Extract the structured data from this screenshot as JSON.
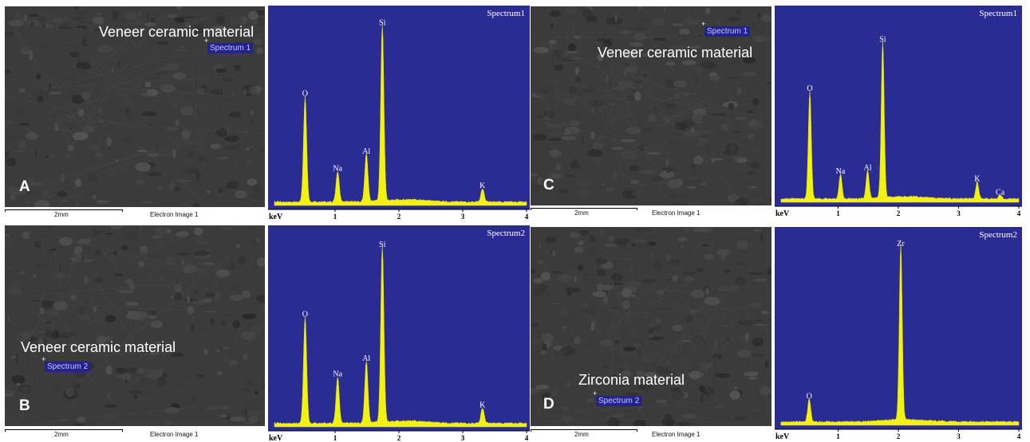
{
  "colors": {
    "plot_bg": "#2b2b94",
    "peak_fill": "#f2f20f",
    "spectrum_title": "#ffffff",
    "sem_base": "#3b3b3b"
  },
  "panels": [
    {
      "letter": "A",
      "material_label": "Veneer ceramic material",
      "spectrum_tag": "Spectrum 1",
      "scale_label": "2mm",
      "image_label": "Electron Image 1"
    },
    {
      "letter": "B",
      "material_label": "Veneer ceramic material",
      "spectrum_tag": "Spectrum 2",
      "scale_label": "2mm",
      "image_label": "Electron Image 1"
    },
    {
      "letter": "C",
      "material_label": "Veneer ceramic material",
      "spectrum_tag": "Spectrum 1",
      "scale_label": "2mm",
      "image_label": "Electron Image 1"
    },
    {
      "letter": "D",
      "material_label": "Zirconia material",
      "spectrum_tag": "Spectrum 2",
      "scale_label": "2mm",
      "image_label": "Electron Image 1"
    }
  ],
  "chart_data": [
    {
      "type": "area",
      "title": "Spectrum1",
      "xlabel": "keV",
      "xlim": [
        0,
        4
      ],
      "ylim": [
        0,
        1
      ],
      "xticks": [
        1,
        2,
        3,
        4
      ],
      "grid": false,
      "peaks": [
        {
          "element": "O",
          "x": 0.53,
          "height": 0.55
        },
        {
          "element": "Na",
          "x": 1.04,
          "height": 0.16
        },
        {
          "element": "Al",
          "x": 1.49,
          "height": 0.25
        },
        {
          "element": "Si",
          "x": 1.74,
          "height": 0.92
        },
        {
          "element": "K",
          "x": 3.31,
          "height": 0.07
        }
      ]
    },
    {
      "type": "area",
      "title": "Spectrum2",
      "xlabel": "keV",
      "xlim": [
        0,
        4
      ],
      "ylim": [
        0,
        1
      ],
      "xticks": [
        1,
        2,
        3,
        4
      ],
      "grid": false,
      "peaks": [
        {
          "element": "O",
          "x": 0.53,
          "height": 0.55
        },
        {
          "element": "Na",
          "x": 1.04,
          "height": 0.24
        },
        {
          "element": "Al",
          "x": 1.49,
          "height": 0.32
        },
        {
          "element": "Si",
          "x": 1.74,
          "height": 0.91
        },
        {
          "element": "K",
          "x": 3.31,
          "height": 0.08
        }
      ]
    },
    {
      "type": "area",
      "title": "Spectrum1",
      "xlabel": "keV",
      "xlim": [
        0,
        4
      ],
      "ylim": [
        0,
        1
      ],
      "xticks": [
        1,
        2,
        3,
        4
      ],
      "grid": false,
      "peaks": [
        {
          "element": "O",
          "x": 0.53,
          "height": 0.57
        },
        {
          "element": "Na",
          "x": 1.04,
          "height": 0.13
        },
        {
          "element": "Al",
          "x": 1.49,
          "height": 0.15
        },
        {
          "element": "Si",
          "x": 1.74,
          "height": 0.83
        },
        {
          "element": "K",
          "x": 3.31,
          "height": 0.09
        },
        {
          "element": "Ca",
          "x": 3.69,
          "height": 0.02
        }
      ]
    },
    {
      "type": "area",
      "title": "Spectrum2",
      "xlabel": "keV",
      "xlim": [
        0,
        4
      ],
      "ylim": [
        0,
        1
      ],
      "xticks": [
        1,
        2,
        3,
        4
      ],
      "grid": false,
      "peaks": [
        {
          "element": "O",
          "x": 0.52,
          "height": 0.12
        },
        {
          "element": "Zr",
          "x": 2.04,
          "height": 0.92
        }
      ]
    }
  ]
}
